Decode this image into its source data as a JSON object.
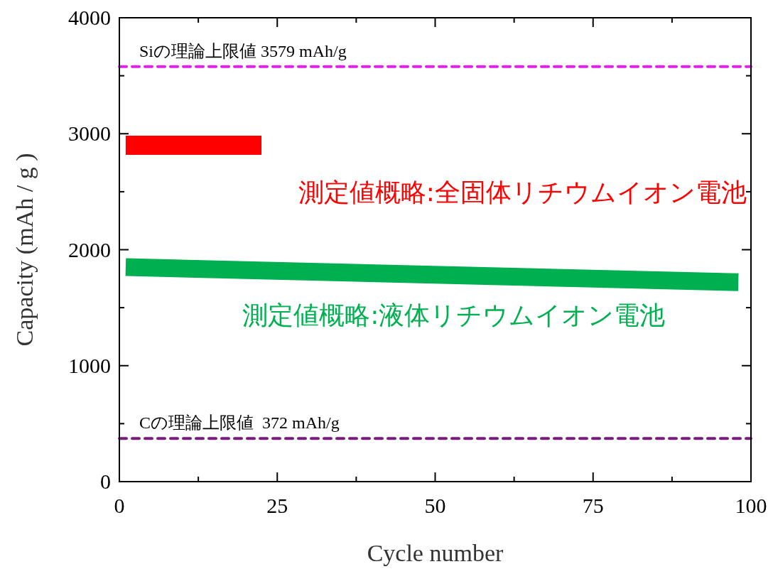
{
  "chart_data": {
    "type": "line",
    "xlabel": "Cycle number",
    "ylabel": "Capacity (mAh / g )",
    "xlim": [
      0,
      100
    ],
    "ylim": [
      0,
      4000
    ],
    "xticks": [
      0,
      {
        "value": 12.5,
        "label": null
      },
      25,
      {
        "value": 37.5,
        "label": null
      },
      50,
      {
        "value": 62.5,
        "label": null
      },
      75,
      {
        "value": 87.5,
        "label": null
      },
      100
    ],
    "yticks": [
      0,
      {
        "value": 500,
        "label": null
      },
      1000,
      {
        "value": 1500,
        "label": null
      },
      2000,
      {
        "value": 2500,
        "label": null
      },
      3000,
      {
        "value": 3500,
        "label": null
      },
      4000
    ],
    "series": [
      {
        "name": "測定値概略:全固体リチウムイオン電池",
        "color": "#ff0000",
        "x": [
          1,
          22.5
        ],
        "values": [
          2900,
          2900
        ]
      },
      {
        "name": "測定値概略:液体リチウムイオン電池",
        "color": "#00b050",
        "x": [
          1,
          98
        ],
        "values": [
          1850,
          1720
        ]
      }
    ],
    "ref_lines": [
      {
        "axis": "y",
        "value": 3579,
        "label": "Siの理論上限値 3579 mAh/g",
        "color": "#e022e8",
        "line_style": "dashed"
      },
      {
        "axis": "y",
        "value": 372,
        "label": "Cの理論上限値  372 mAh/g",
        "color": "#7a1a7e",
        "line_style": "dashed"
      }
    ],
    "grid": false,
    "legend": false,
    "marker": "none",
    "line_style": "solid"
  }
}
